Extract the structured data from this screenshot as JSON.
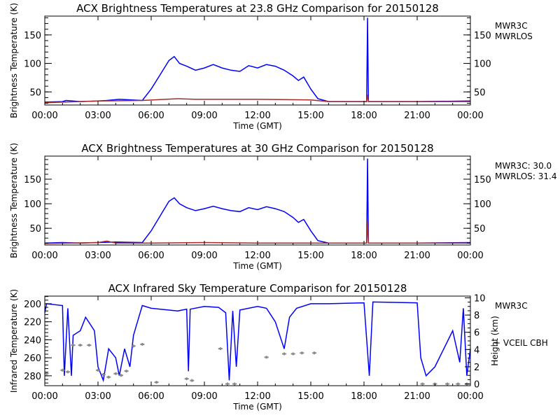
{
  "colors": {
    "mwr3c": "#0000ff",
    "mwrlos": "#a52a2a",
    "vceil": "#888888",
    "axis": "#000000"
  },
  "chart_data": [
    {
      "type": "line",
      "title": "ACX  Brightness Temperatures at 23.8 GHz Comparison for 20150128",
      "xlabel": "Time (GMT)",
      "ylabel": "Brightness Temperature (K)",
      "xlim": [
        0,
        24
      ],
      "ylim": [
        27,
        183
      ],
      "xticks": [
        "00:00",
        "03:00",
        "06:00",
        "09:00",
        "12:00",
        "15:00",
        "18:00",
        "21:00",
        "00:00"
      ],
      "yticks": [
        50,
        100,
        150
      ],
      "legend": [
        "MWR3C",
        "MWRLOS"
      ],
      "legend_position": "right",
      "series": [
        {
          "name": "MWR3C",
          "color": "#0000ff",
          "points": [
            [
              0,
              32
            ],
            [
              1,
              33
            ],
            [
              1.2,
              35
            ],
            [
              2,
              33
            ],
            [
              3,
              34
            ],
            [
              3.5,
              35
            ],
            [
              4.2,
              37
            ],
            [
              5.5,
              35
            ],
            [
              6,
              55
            ],
            [
              6.5,
              80
            ],
            [
              7,
              105
            ],
            [
              7.3,
              112
            ],
            [
              7.6,
              100
            ],
            [
              8,
              95
            ],
            [
              8.5,
              88
            ],
            [
              9,
              92
            ],
            [
              9.5,
              98
            ],
            [
              10,
              92
            ],
            [
              10.5,
              88
            ],
            [
              11,
              86
            ],
            [
              11.5,
              96
            ],
            [
              12,
              92
            ],
            [
              12.5,
              98
            ],
            [
              13,
              95
            ],
            [
              13.5,
              88
            ],
            [
              14,
              78
            ],
            [
              14.3,
              70
            ],
            [
              14.6,
              76
            ],
            [
              15,
              55
            ],
            [
              15.4,
              38
            ],
            [
              16,
              33
            ],
            [
              18.15,
              33
            ],
            [
              18.2,
              180
            ],
            [
              18.25,
              33
            ],
            [
              21,
              33
            ],
            [
              24,
              34
            ]
          ]
        },
        {
          "name": "MWRLOS",
          "color": "#a52a2a",
          "points": [
            [
              0,
              31
            ],
            [
              3,
              34
            ],
            [
              5.5,
              35
            ],
            [
              7.5,
              38
            ],
            [
              8.5,
              37
            ],
            [
              12,
              37
            ],
            [
              15,
              36
            ],
            [
              16,
              33
            ],
            [
              18.15,
              33
            ],
            [
              18.2,
              45
            ],
            [
              18.25,
              33
            ],
            [
              24,
              33
            ]
          ]
        }
      ]
    },
    {
      "type": "line",
      "title": "ACX  Brightness Temperatures at 30 GHz Comparison for 20150128",
      "xlabel": "Time (GMT)",
      "ylabel": "Brightness Temperature (K)",
      "xlim": [
        0,
        24
      ],
      "ylim": [
        16,
        197
      ],
      "xticks": [
        "00:00",
        "03:00",
        "06:00",
        "09:00",
        "12:00",
        "15:00",
        "18:00",
        "21:00",
        "00:00"
      ],
      "yticks": [
        50,
        100,
        150
      ],
      "legend": [
        "MWR3C: 30.0",
        "MWRLOS: 31.4"
      ],
      "legend_position": "right",
      "series": [
        {
          "name": "MWR3C",
          "color": "#0000ff",
          "points": [
            [
              0,
              20
            ],
            [
              1,
              21
            ],
            [
              2,
              20
            ],
            [
              3,
              21
            ],
            [
              4,
              22
            ],
            [
              5.5,
              21
            ],
            [
              6,
              45
            ],
            [
              6.5,
              75
            ],
            [
              7,
              105
            ],
            [
              7.3,
              112
            ],
            [
              7.6,
              100
            ],
            [
              8,
              92
            ],
            [
              8.5,
              86
            ],
            [
              9,
              90
            ],
            [
              9.5,
              95
            ],
            [
              10,
              90
            ],
            [
              10.5,
              86
            ],
            [
              11,
              84
            ],
            [
              11.5,
              92
            ],
            [
              12,
              88
            ],
            [
              12.5,
              94
            ],
            [
              13,
              90
            ],
            [
              13.5,
              84
            ],
            [
              14,
              72
            ],
            [
              14.3,
              62
            ],
            [
              14.6,
              68
            ],
            [
              15,
              45
            ],
            [
              15.4,
              25
            ],
            [
              16,
              20
            ],
            [
              18.15,
              20
            ],
            [
              18.2,
              192
            ],
            [
              18.25,
              20
            ],
            [
              21,
              20
            ],
            [
              24,
              21
            ]
          ]
        },
        {
          "name": "MWRLOS",
          "color": "#a52a2a",
          "points": [
            [
              0,
              19
            ],
            [
              3,
              21
            ],
            [
              3.5,
              24
            ],
            [
              4,
              20
            ],
            [
              6,
              20
            ],
            [
              9,
              21
            ],
            [
              12,
              20
            ],
            [
              15,
              20
            ],
            [
              18.15,
              20
            ],
            [
              18.2,
              65
            ],
            [
              18.25,
              20
            ],
            [
              24,
              20
            ]
          ]
        }
      ]
    },
    {
      "type": "line",
      "title": "ACX  Infrared Sky Temperature Comparison for 20150128",
      "xlabel": "Time (GMT)",
      "ylabel": "Infrared Temperature (K)",
      "y2label": "Height (km)",
      "xlim": [
        0,
        24
      ],
      "ylim": [
        291,
        191.5
      ],
      "y2lim": [
        -0.2,
        10.2
      ],
      "xticks": [
        "00:00",
        "03:00",
        "06:00",
        "09:00",
        "12:00",
        "15:00",
        "18:00",
        "21:00",
        "00:00"
      ],
      "yticks": [
        200,
        220,
        240,
        260,
        280
      ],
      "y2ticks": [
        0,
        2,
        4,
        6,
        8,
        10
      ],
      "legend": [
        "MWR3C",
        "+ VCEIL CBH"
      ],
      "legend_position": "right",
      "series": [
        {
          "name": "MWR3C",
          "color": "#0000ff",
          "points": [
            [
              0,
              210
            ],
            [
              0.1,
              200
            ],
            [
              1,
              202
            ],
            [
              1.1,
              280
            ],
            [
              1.3,
              205
            ],
            [
              1.5,
              280
            ],
            [
              1.6,
              235
            ],
            [
              2,
              230
            ],
            [
              2.3,
              215
            ],
            [
              2.8,
              230
            ],
            [
              3,
              270
            ],
            [
              3.3,
              285
            ],
            [
              3.6,
              250
            ],
            [
              4,
              260
            ],
            [
              4.2,
              280
            ],
            [
              4.5,
              250
            ],
            [
              4.8,
              270
            ],
            [
              5,
              235
            ],
            [
              5.3,
              215
            ],
            [
              5.5,
              202
            ],
            [
              6,
              205
            ],
            [
              7.5,
              208
            ],
            [
              8,
              206
            ],
            [
              8.1,
              275
            ],
            [
              8.2,
              206
            ],
            [
              9,
              203
            ],
            [
              9.8,
              204
            ],
            [
              10.2,
              210
            ],
            [
              10.4,
              285
            ],
            [
              10.6,
              208
            ],
            [
              10.8,
              270
            ],
            [
              11,
              207
            ],
            [
              12,
              203
            ],
            [
              12.5,
              205
            ],
            [
              13,
              220
            ],
            [
              13.5,
              250
            ],
            [
              13.8,
              215
            ],
            [
              14.2,
              205
            ],
            [
              15,
              200
            ],
            [
              16,
              200
            ],
            [
              18,
              199
            ],
            [
              18.3,
              280
            ],
            [
              18.5,
              198
            ],
            [
              21,
              199
            ],
            [
              21.2,
              260
            ],
            [
              21.5,
              280
            ],
            [
              22,
              270
            ],
            [
              22.5,
              250
            ],
            [
              23,
              230
            ],
            [
              23.4,
              265
            ],
            [
              23.6,
              205
            ],
            [
              23.8,
              280
            ],
            [
              24,
              250
            ]
          ]
        },
        {
          "name": "VCEIL CBH",
          "color": "#888888",
          "axis": "y2",
          "marker": "+",
          "points": [
            [
              0.1,
              1.2
            ],
            [
              1,
              1.6
            ],
            [
              1.3,
              1.4
            ],
            [
              1.6,
              4.5
            ],
            [
              2,
              4.5
            ],
            [
              2.5,
              4.5
            ],
            [
              3,
              1.6
            ],
            [
              3.3,
              1.1
            ],
            [
              3.6,
              0.8
            ],
            [
              4,
              1.2
            ],
            [
              4.3,
              1.0
            ],
            [
              4.6,
              1.5
            ],
            [
              5,
              4.4
            ],
            [
              5.5,
              4.6
            ],
            [
              6.3,
              0.2
            ],
            [
              8,
              0.6
            ],
            [
              8.3,
              0.4
            ],
            [
              9.9,
              4.1
            ],
            [
              10.3,
              0
            ],
            [
              10.7,
              0
            ],
            [
              12.5,
              3.1
            ],
            [
              13.5,
              3.5
            ],
            [
              14,
              3.5
            ],
            [
              14.5,
              3.6
            ],
            [
              15.2,
              3.6
            ],
            [
              21.3,
              0
            ],
            [
              22,
              0
            ],
            [
              22.7,
              0
            ],
            [
              23.3,
              0
            ],
            [
              23.8,
              0
            ]
          ]
        }
      ]
    }
  ]
}
